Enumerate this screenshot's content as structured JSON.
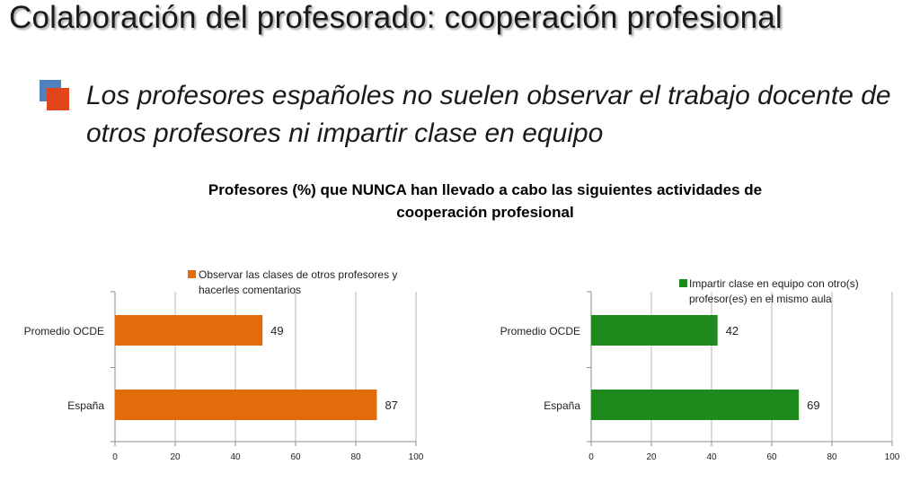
{
  "slide": {
    "title": "Colaboración del profesorado: cooperación profesional",
    "bullet": "Los profesores españoles no suelen observar el trabajo docente de otros profesores ni impartir clase en equipo"
  },
  "chart_heading": "Profesores (%) que NUNCA han llevado a cabo las siguientes actividades de cooperación profesional",
  "colors": {
    "orange": "#e36c0a",
    "green": "#1e8a1e",
    "bullet_blue": "#4f81bd",
    "bullet_red": "#e2441b"
  },
  "chart_data": [
    {
      "type": "bar",
      "orientation": "horizontal",
      "categories": [
        "Promedio OCDE",
        "España"
      ],
      "series": [
        {
          "name": "Observar las clases de otros profesores y hacerles comentarios",
          "values": [
            49,
            87
          ],
          "color": "#e36c0a"
        }
      ],
      "xlim": [
        0,
        100
      ],
      "xticks": [
        0,
        20,
        40,
        60,
        80,
        100
      ],
      "grid": "vertical",
      "legend": "top"
    },
    {
      "type": "bar",
      "orientation": "horizontal",
      "categories": [
        "Promedio OCDE",
        "España"
      ],
      "series": [
        {
          "name": "Impartir clase en equipo con otro(s) profesor(es) en el mismo aula",
          "values": [
            42,
            69
          ],
          "color": "#1e8a1e"
        }
      ],
      "xlim": [
        0,
        100
      ],
      "xticks": [
        0,
        20,
        40,
        60,
        80,
        100
      ],
      "grid": "vertical",
      "legend": "top"
    }
  ]
}
